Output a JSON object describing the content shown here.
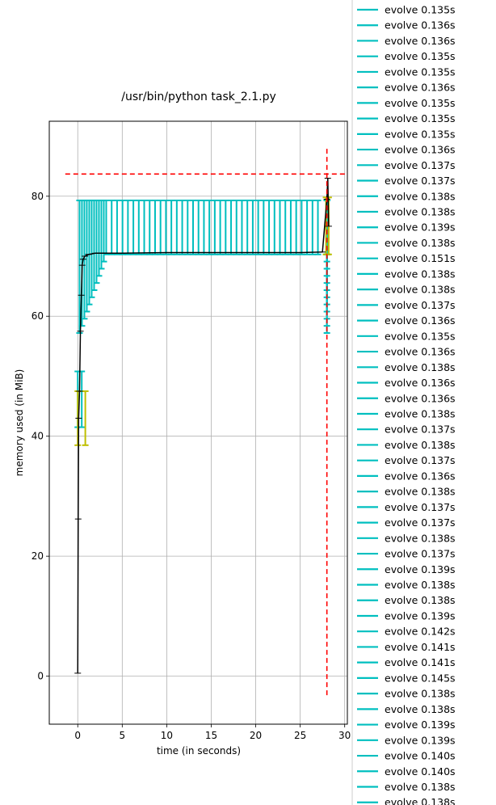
{
  "chart_data": {
    "type": "line",
    "title": "/usr/bin/python task_2.1.py",
    "xlabel": "time (in seconds)",
    "ylabel": "memory used (in MiB)",
    "xlim": [
      -3.2,
      30.3
    ],
    "ylim": [
      -8,
      92.5
    ],
    "xticks": [
      0,
      5,
      10,
      15,
      20,
      25,
      30
    ],
    "yticks": [
      0,
      20,
      40,
      60,
      80
    ],
    "grid": true,
    "colors": {
      "memory_line": "#000000",
      "evolve": "#00bfbf",
      "other_call": "#bfbf00",
      "peak_marker": "#ff0000"
    },
    "memory_series": {
      "name": "",
      "x": [
        0.0,
        0.05,
        0.1,
        0.2,
        0.3,
        0.4,
        0.5,
        0.6,
        0.8,
        1.2,
        2.0,
        5.0,
        10.0,
        15.0,
        20.0,
        25.0,
        27.5,
        28.0,
        28.1,
        28.2
      ],
      "y": [
        0.5,
        26.2,
        43.0,
        47.5,
        57.5,
        63.5,
        68.5,
        69.5,
        70.0,
        70.3,
        70.5,
        70.5,
        70.6,
        70.6,
        70.6,
        70.6,
        70.7,
        79.5,
        83.0,
        75.0
      ]
    },
    "other_call_brackets": [
      {
        "start": 0.0,
        "end": 0.85,
        "low": 38.5,
        "high": 47.5
      },
      {
        "start": 27.9,
        "end": 28.2,
        "low": 70.3,
        "high": 79.8
      }
    ],
    "peak_marker": {
      "x": 28.0,
      "y": 83.7
    },
    "evolve_calls": {
      "first_start": 0.0,
      "first_end": 0.45,
      "first_low": 41.5,
      "first_high": 50.8,
      "ramp_start": 0.2,
      "ramp_end": 3.2,
      "ramp_low_from": 57.2,
      "ramp_low_to": 70.3,
      "steady_low": 70.3,
      "steady_high": 79.3,
      "end": 28.0
    },
    "legend_position": "right, outside",
    "legend_entries": [
      "evolve 0.135s",
      "evolve 0.136s",
      "evolve 0.136s",
      "evolve 0.135s",
      "evolve 0.135s",
      "evolve 0.136s",
      "evolve 0.135s",
      "evolve 0.135s",
      "evolve 0.135s",
      "evolve 0.136s",
      "evolve 0.137s",
      "evolve 0.137s",
      "evolve 0.138s",
      "evolve 0.138s",
      "evolve 0.139s",
      "evolve 0.138s",
      "evolve 0.151s",
      "evolve 0.138s",
      "evolve 0.138s",
      "evolve 0.137s",
      "evolve 0.136s",
      "evolve 0.135s",
      "evolve 0.136s",
      "evolve 0.138s",
      "evolve 0.136s",
      "evolve 0.136s",
      "evolve 0.138s",
      "evolve 0.137s",
      "evolve 0.138s",
      "evolve 0.137s",
      "evolve 0.136s",
      "evolve 0.138s",
      "evolve 0.137s",
      "evolve 0.137s",
      "evolve 0.138s",
      "evolve 0.137s",
      "evolve 0.139s",
      "evolve 0.138s",
      "evolve 0.138s",
      "evolve 0.139s",
      "evolve 0.142s",
      "evolve 0.141s",
      "evolve 0.141s",
      "evolve 0.145s",
      "evolve 0.138s",
      "evolve 0.138s",
      "evolve 0.139s",
      "evolve 0.139s",
      "evolve 0.140s",
      "evolve 0.140s",
      "evolve 0.138s",
      "evolve 0.138s"
    ]
  }
}
